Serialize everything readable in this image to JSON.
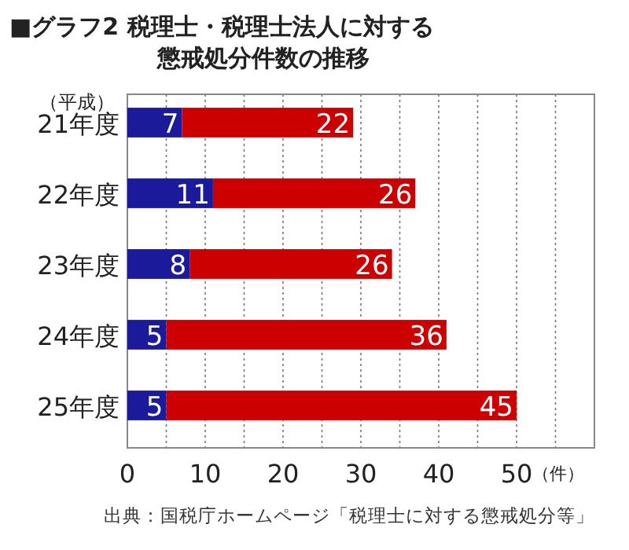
{
  "chart_data": {
    "type": "bar",
    "title": "■グラフ2 税理士・税理士法人に対する懲戒処分件数の推移",
    "ylabel": "（平成）",
    "xlabel": "（件）",
    "categories": [
      "21年度",
      "22年度",
      "23年度",
      "24年度",
      "25年度"
    ],
    "series": [
      {
        "color": "#1a1a9a",
        "values": [
          7,
          11,
          8,
          5,
          5
        ]
      },
      {
        "color": "#cc0000",
        "values": [
          22,
          26,
          26,
          36,
          45
        ]
      }
    ],
    "stacked": true,
    "orientation": "horizontal",
    "data_labels": true,
    "xlim": [
      0,
      60
    ],
    "xticks": [
      0,
      {
        "value": 5,
        "label": null
      },
      10,
      {
        "value": 15,
        "label": null
      },
      20,
      {
        "value": 25,
        "label": null
      },
      30,
      {
        "value": 35,
        "label": null
      },
      40,
      {
        "value": 45,
        "label": null
      },
      50,
      {
        "value": 55,
        "label": null
      }
    ],
    "grid": "x",
    "annotations": [
      "出典：国税庁ホームページ「税理士に対する懲戒処分等」"
    ]
  }
}
